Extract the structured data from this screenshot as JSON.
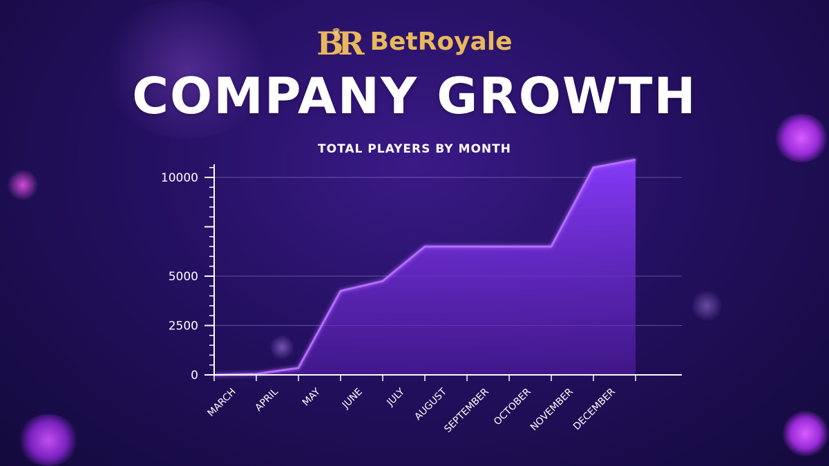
{
  "brand": {
    "name": "BetRoyale",
    "mark": "BR",
    "crown_icon": "crown-icon"
  },
  "headline": "COMPANY GROWTH",
  "colors": {
    "gold": "#e8b85c",
    "line": "#b56cff",
    "fill_top": "#8a3cff",
    "fill_bottom": "#6a24c8",
    "background": "#241061"
  },
  "chart_data": {
    "type": "area",
    "title": "TOTAL PLAYERS BY MONTH",
    "xlabel": "",
    "ylabel": "",
    "grid": true,
    "y_ticks": [
      0,
      2500,
      5000,
      10000
    ],
    "x_labels": [
      "MARCH",
      "APRIL",
      "MAY",
      "JUNE",
      "JULY",
      "AUGUST",
      "SEPTEMBER",
      "OCTOBER",
      "NOVEMBER",
      "DECEMBER"
    ],
    "series": [
      {
        "x": [
          0,
          1,
          2,
          3,
          4,
          5,
          6,
          7,
          8,
          9,
          10
        ],
        "values": [
          0,
          50,
          350,
          4250,
          4750,
          6500,
          6500,
          6500,
          6500,
          10500,
          10900
        ]
      }
    ]
  }
}
